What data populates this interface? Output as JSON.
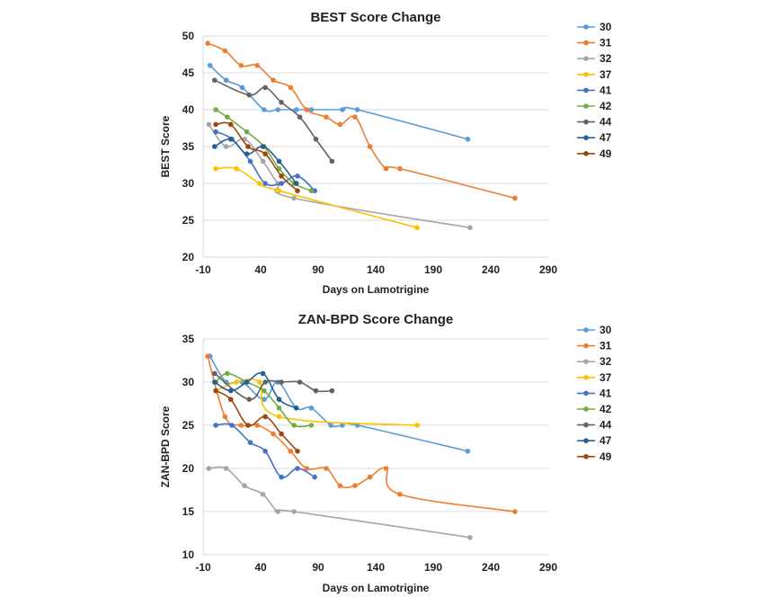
{
  "chart_data": [
    {
      "type": "line",
      "title": "BEST Score Change",
      "xlabel": "Days on Lamotrigine",
      "ylabel": "BEST Score",
      "xlim": [
        -10,
        290
      ],
      "ylim": [
        20,
        50
      ],
      "xticks": [
        -10,
        40,
        90,
        140,
        190,
        240,
        290
      ],
      "yticks": [
        20,
        25,
        30,
        35,
        40,
        45,
        50
      ],
      "grid": "horizontal",
      "legend": "right",
      "series": [
        {
          "name": "30",
          "color": "#5B9BD5",
          "x": [
            -4,
            10,
            24,
            43,
            55,
            71,
            84,
            111,
            124,
            220
          ],
          "y": [
            46,
            44,
            43,
            40,
            40,
            40,
            40,
            40,
            40,
            36
          ]
        },
        {
          "name": "31",
          "color": "#ED7D31",
          "x": [
            -6,
            9,
            23,
            37,
            51,
            66,
            80,
            97,
            109,
            122,
            135,
            149,
            161,
            261
          ],
          "y": [
            49,
            48,
            46,
            46,
            44,
            43,
            40,
            39,
            38,
            39,
            35,
            32,
            32,
            28
          ]
        },
        {
          "name": "32",
          "color": "#A5A5A5",
          "x": [
            -5,
            10,
            26,
            42,
            55,
            69,
            222
          ],
          "y": [
            38,
            35,
            36,
            33,
            30,
            28,
            24
          ]
        },
        {
          "name": "37",
          "color": "#FFC000",
          "x": [
            1,
            19,
            39,
            56,
            176
          ],
          "y": [
            32,
            32,
            30,
            29,
            24
          ]
        },
        {
          "name": "41",
          "color": "#4472C4",
          "x": [
            1,
            15,
            31,
            44,
            58,
            72,
            87
          ],
          "y": [
            37,
            36,
            33,
            30,
            30,
            31,
            29
          ]
        },
        {
          "name": "42",
          "color": "#70AD47",
          "x": [
            1,
            11,
            28,
            43,
            56,
            69,
            84
          ],
          "y": [
            40,
            39,
            37,
            35,
            32,
            30,
            29
          ]
        },
        {
          "name": "44",
          "color": "#636363",
          "x": [
            0,
            30,
            44,
            58,
            74,
            88,
            102
          ],
          "y": [
            44,
            42,
            43,
            41,
            39,
            36,
            33
          ]
        },
        {
          "name": "47",
          "color": "#255E91",
          "x": [
            0,
            14,
            28,
            42,
            56,
            71
          ],
          "y": [
            35,
            36,
            34,
            35,
            33,
            30
          ]
        },
        {
          "name": "49",
          "color": "#9E480E",
          "x": [
            1,
            14,
            29,
            44,
            58,
            72
          ],
          "y": [
            38,
            38,
            35,
            34,
            31,
            29
          ]
        }
      ]
    },
    {
      "type": "line",
      "title": "ZAN-BPD Score Change",
      "xlabel": "Days on Lamotrigine",
      "ylabel": "ZAN-BPD Score",
      "xlim": [
        -10,
        290
      ],
      "ylim": [
        10,
        35
      ],
      "xticks": [
        -10,
        40,
        90,
        140,
        190,
        240,
        290
      ],
      "yticks": [
        10,
        15,
        20,
        25,
        30,
        35
      ],
      "grid": "horizontal",
      "legend": "right",
      "series": [
        {
          "name": "30",
          "color": "#5B9BD5",
          "x": [
            -4,
            10,
            24,
            43,
            55,
            71,
            84,
            101,
            111,
            124,
            220
          ],
          "y": [
            33,
            30,
            30,
            28,
            30,
            27,
            27,
            25,
            25,
            25,
            22
          ]
        },
        {
          "name": "31",
          "color": "#ED7D31",
          "x": [
            -6,
            9,
            23,
            37,
            51,
            66,
            80,
            97,
            109,
            122,
            135,
            149,
            161,
            261
          ],
          "y": [
            33,
            26,
            25,
            25,
            24,
            22,
            20,
            20,
            18,
            18,
            19,
            20,
            17,
            15
          ]
        },
        {
          "name": "32",
          "color": "#A5A5A5",
          "x": [
            -5,
            10,
            26,
            42,
            55,
            69,
            222
          ],
          "y": [
            20,
            20,
            18,
            17,
            15,
            15,
            12
          ]
        },
        {
          "name": "37",
          "color": "#FFC000",
          "x": [
            1,
            19,
            39,
            56,
            176
          ],
          "y": [
            29,
            30,
            30,
            26,
            25
          ]
        },
        {
          "name": "41",
          "color": "#4472C4",
          "x": [
            1,
            15,
            31,
            44,
            58,
            72,
            87
          ],
          "y": [
            25,
            25,
            23,
            22,
            19,
            20,
            19
          ]
        },
        {
          "name": "42",
          "color": "#70AD47",
          "x": [
            1,
            11,
            28,
            43,
            56,
            69,
            84
          ],
          "y": [
            30,
            31,
            30,
            29,
            27,
            25,
            25
          ]
        },
        {
          "name": "44",
          "color": "#636363",
          "x": [
            0,
            30,
            44,
            58,
            74,
            88,
            102
          ],
          "y": [
            31,
            28,
            30,
            30,
            30,
            29,
            29
          ]
        },
        {
          "name": "47",
          "color": "#255E91",
          "x": [
            0,
            14,
            28,
            42,
            56,
            71
          ],
          "y": [
            30,
            29,
            30,
            31,
            28,
            27
          ]
        },
        {
          "name": "49",
          "color": "#9E480E",
          "x": [
            1,
            14,
            29,
            44,
            58,
            72
          ],
          "y": [
            29,
            28,
            25,
            26,
            24,
            22
          ]
        }
      ]
    }
  ]
}
